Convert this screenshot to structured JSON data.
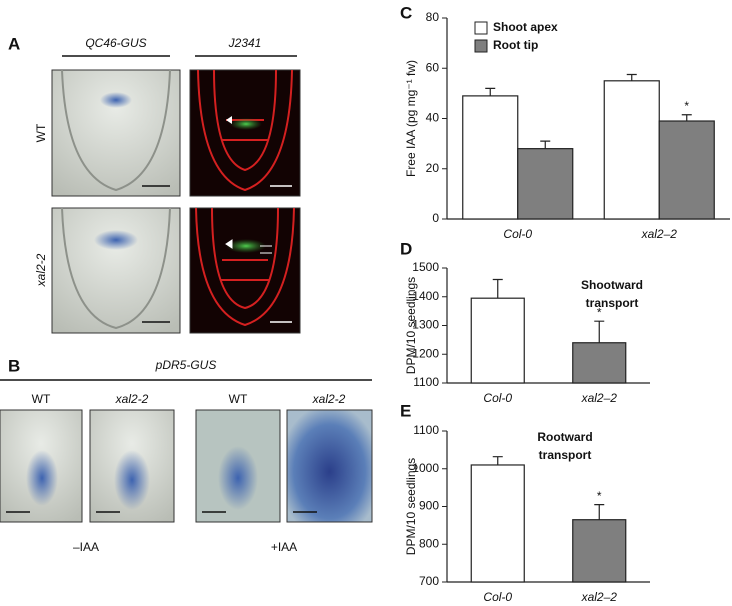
{
  "panel_a": {
    "label": "A",
    "columns": [
      "QC46-GUS",
      "J2341"
    ],
    "rows": [
      "WT",
      "xal2-2"
    ]
  },
  "panel_b": {
    "label": "B",
    "title": "pDR5-GUS",
    "images": [
      "WT",
      "xal2-2",
      "WT",
      "xal2-2"
    ],
    "treatments": [
      "–IAA",
      "+IAA"
    ]
  },
  "chart_data": [
    {
      "type": "bar",
      "panel": "C",
      "y_label": "Free IAA (pg mg⁻¹ fw)",
      "categories": [
        "Col-0",
        "xal2–2"
      ],
      "series": [
        {
          "name": "Shoot apex",
          "color": "#ffffff",
          "values": [
            49,
            55
          ],
          "errors": [
            3,
            2.5
          ]
        },
        {
          "name": "Root tip",
          "color": "#7f7f7f",
          "values": [
            28,
            39
          ],
          "errors": [
            3,
            2.5
          ]
        }
      ],
      "ylim": [
        0,
        80
      ],
      "yticks": [
        0,
        20,
        40,
        60,
        80
      ],
      "significance": "*",
      "legend": "upper-left"
    },
    {
      "type": "bar",
      "panel": "D",
      "y_label": "DPM/10 seedlings",
      "categories": [
        "Col-0",
        "xal2–2"
      ],
      "values": [
        1395,
        1240
      ],
      "errors": [
        65,
        75
      ],
      "colors": [
        "#ffffff",
        "#7f7f7f"
      ],
      "ylim": [
        1100,
        1500
      ],
      "yticks": [
        1100,
        1200,
        1300,
        1400,
        1500
      ],
      "significance": "*",
      "note": [
        "Shootward",
        "transport"
      ]
    },
    {
      "type": "bar",
      "panel": "E",
      "y_label": "DPM/10 seedlings",
      "categories": [
        "Col-0",
        "xal2–2"
      ],
      "values": [
        1010,
        865
      ],
      "errors": [
        22,
        40
      ],
      "colors": [
        "#ffffff",
        "#7f7f7f"
      ],
      "ylim": [
        700,
        1100
      ],
      "yticks": [
        700,
        800,
        900,
        1000,
        1100
      ],
      "significance": "*",
      "note": [
        "Rootward",
        "transport"
      ]
    }
  ]
}
